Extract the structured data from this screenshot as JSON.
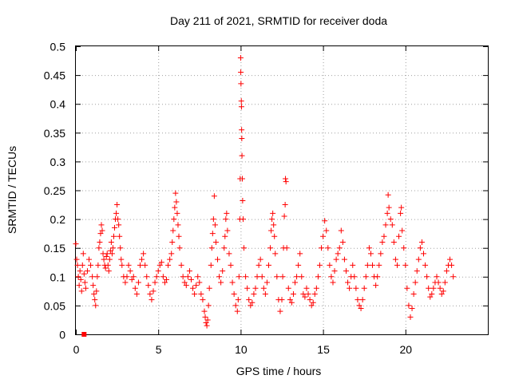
{
  "chart_data": {
    "type": "scatter",
    "title": "Day 211 of 2021, SRMTID for receiver doda",
    "xlabel": "GPS time / hours",
    "ylabel": "SRMTID / TECUs",
    "xlim": [
      0,
      25
    ],
    "ylim": [
      0,
      0.5
    ],
    "x_ticks": [
      0,
      5,
      10,
      15,
      20
    ],
    "x_tick_labels": [
      "0",
      "5",
      "10",
      "15",
      "20"
    ],
    "y_ticks": [
      0,
      0.05,
      0.1,
      0.15,
      0.2,
      0.25,
      0.3,
      0.35,
      0.4,
      0.45,
      0.5
    ],
    "y_tick_labels": [
      "0",
      "0.05",
      "0.1",
      "0.15",
      "0.2",
      "0.25",
      "0.3",
      "0.35",
      "0.4",
      "0.45",
      "0.5"
    ],
    "grid": true,
    "marker_color": "#ff0000",
    "series": [
      {
        "name": "SRMTID",
        "marker": "plus",
        "points": [
          [
            0.0,
            0.157
          ],
          [
            0.05,
            0.13
          ],
          [
            0.1,
            0.12
          ],
          [
            0.15,
            0.1
          ],
          [
            0.2,
            0.085
          ],
          [
            0.25,
            0.11
          ],
          [
            0.3,
            0.095
          ],
          [
            0.35,
            0.075
          ],
          [
            0.4,
            0.12
          ],
          [
            0.45,
            0.14
          ],
          [
            0.5,
            0.105
          ],
          [
            0.55,
            0.09
          ],
          [
            0.6,
            0.08
          ],
          [
            0.7,
            0.11
          ],
          [
            0.8,
            0.13
          ],
          [
            0.9,
            0.12
          ],
          [
            1.0,
            0.1
          ],
          [
            1.05,
            0.085
          ],
          [
            1.1,
            0.07
          ],
          [
            1.15,
            0.06
          ],
          [
            1.2,
            0.05
          ],
          [
            1.25,
            0.075
          ],
          [
            1.3,
            0.1
          ],
          [
            1.35,
            0.12
          ],
          [
            1.4,
            0.15
          ],
          [
            1.45,
            0.16
          ],
          [
            1.5,
            0.175
          ],
          [
            1.55,
            0.19
          ],
          [
            1.6,
            0.18
          ],
          [
            1.65,
            0.14
          ],
          [
            1.7,
            0.13
          ],
          [
            1.75,
            0.12
          ],
          [
            1.8,
            0.115
          ],
          [
            1.85,
            0.135
          ],
          [
            1.9,
            0.14
          ],
          [
            1.95,
            0.12
          ],
          [
            2.0,
            0.11
          ],
          [
            2.05,
            0.13
          ],
          [
            2.1,
            0.145
          ],
          [
            2.15,
            0.16
          ],
          [
            2.2,
            0.14
          ],
          [
            2.25,
            0.15
          ],
          [
            2.3,
            0.17
          ],
          [
            2.35,
            0.185
          ],
          [
            2.4,
            0.2
          ],
          [
            2.45,
            0.21
          ],
          [
            2.5,
            0.225
          ],
          [
            2.55,
            0.2
          ],
          [
            2.6,
            0.19
          ],
          [
            2.65,
            0.17
          ],
          [
            2.7,
            0.15
          ],
          [
            2.75,
            0.13
          ],
          [
            2.8,
            0.12
          ],
          [
            2.9,
            0.1
          ],
          [
            3.0,
            0.09
          ],
          [
            3.1,
            0.1
          ],
          [
            3.2,
            0.12
          ],
          [
            3.3,
            0.11
          ],
          [
            3.4,
            0.095
          ],
          [
            3.5,
            0.1
          ],
          [
            3.6,
            0.08
          ],
          [
            3.7,
            0.07
          ],
          [
            3.8,
            0.09
          ],
          [
            3.9,
            0.12
          ],
          [
            4.0,
            0.13
          ],
          [
            4.1,
            0.14
          ],
          [
            4.2,
            0.12
          ],
          [
            4.3,
            0.1
          ],
          [
            4.4,
            0.085
          ],
          [
            4.5,
            0.07
          ],
          [
            4.6,
            0.06
          ],
          [
            4.7,
            0.075
          ],
          [
            4.8,
            0.09
          ],
          [
            4.9,
            0.1
          ],
          [
            5.0,
            0.11
          ],
          [
            5.1,
            0.12
          ],
          [
            5.2,
            0.125
          ],
          [
            5.3,
            0.1
          ],
          [
            5.4,
            0.09
          ],
          [
            5.5,
            0.095
          ],
          [
            5.6,
            0.12
          ],
          [
            5.7,
            0.13
          ],
          [
            5.8,
            0.14
          ],
          [
            5.85,
            0.16
          ],
          [
            5.9,
            0.18
          ],
          [
            5.95,
            0.2
          ],
          [
            6.0,
            0.22
          ],
          [
            6.05,
            0.245
          ],
          [
            6.1,
            0.23
          ],
          [
            6.15,
            0.21
          ],
          [
            6.2,
            0.19
          ],
          [
            6.25,
            0.17
          ],
          [
            6.3,
            0.15
          ],
          [
            6.4,
            0.12
          ],
          [
            6.5,
            0.1
          ],
          [
            6.6,
            0.09
          ],
          [
            6.7,
            0.085
          ],
          [
            6.8,
            0.1
          ],
          [
            6.9,
            0.11
          ],
          [
            7.0,
            0.095
          ],
          [
            7.1,
            0.08
          ],
          [
            7.2,
            0.07
          ],
          [
            7.3,
            0.085
          ],
          [
            7.4,
            0.1
          ],
          [
            7.5,
            0.09
          ],
          [
            7.6,
            0.07
          ],
          [
            7.7,
            0.06
          ],
          [
            7.8,
            0.04
          ],
          [
            7.85,
            0.03
          ],
          [
            7.9,
            0.02
          ],
          [
            7.95,
            0.015
          ],
          [
            8.0,
            0.025
          ],
          [
            8.05,
            0.05
          ],
          [
            8.1,
            0.08
          ],
          [
            8.2,
            0.12
          ],
          [
            8.25,
            0.15
          ],
          [
            8.3,
            0.175
          ],
          [
            8.35,
            0.2
          ],
          [
            8.4,
            0.24
          ],
          [
            8.45,
            0.19
          ],
          [
            8.5,
            0.16
          ],
          [
            8.6,
            0.13
          ],
          [
            8.7,
            0.1
          ],
          [
            8.8,
            0.09
          ],
          [
            8.9,
            0.11
          ],
          [
            9.0,
            0.15
          ],
          [
            9.05,
            0.17
          ],
          [
            9.1,
            0.2
          ],
          [
            9.15,
            0.21
          ],
          [
            9.2,
            0.18
          ],
          [
            9.3,
            0.14
          ],
          [
            9.4,
            0.12
          ],
          [
            9.5,
            0.09
          ],
          [
            9.6,
            0.07
          ],
          [
            9.7,
            0.05
          ],
          [
            9.8,
            0.04
          ],
          [
            9.85,
            0.06
          ],
          [
            9.9,
            0.1
          ],
          [
            9.95,
            0.2
          ],
          [
            9.97,
            0.27
          ],
          [
            10.0,
            0.48
          ],
          [
            10.01,
            0.455
          ],
          [
            10.02,
            0.435
          ],
          [
            10.04,
            0.405
          ],
          [
            10.05,
            0.395
          ],
          [
            10.06,
            0.355
          ],
          [
            10.07,
            0.34
          ],
          [
            10.08,
            0.31
          ],
          [
            10.1,
            0.27
          ],
          [
            10.12,
            0.232
          ],
          [
            10.15,
            0.2
          ],
          [
            10.2,
            0.15
          ],
          [
            10.3,
            0.1
          ],
          [
            10.4,
            0.08
          ],
          [
            10.5,
            0.06
          ],
          [
            10.6,
            0.05
          ],
          [
            10.7,
            0.055
          ],
          [
            10.8,
            0.07
          ],
          [
            10.9,
            0.08
          ],
          [
            11.0,
            0.1
          ],
          [
            11.1,
            0.12
          ],
          [
            11.2,
            0.13
          ],
          [
            11.3,
            0.1
          ],
          [
            11.4,
            0.08
          ],
          [
            11.5,
            0.07
          ],
          [
            11.6,
            0.09
          ],
          [
            11.7,
            0.12
          ],
          [
            11.8,
            0.15
          ],
          [
            11.85,
            0.18
          ],
          [
            11.9,
            0.2
          ],
          [
            11.95,
            0.21
          ],
          [
            12.0,
            0.19
          ],
          [
            12.05,
            0.17
          ],
          [
            12.1,
            0.14
          ],
          [
            12.2,
            0.1
          ],
          [
            12.3,
            0.06
          ],
          [
            12.4,
            0.04
          ],
          [
            12.5,
            0.06
          ],
          [
            12.55,
            0.1
          ],
          [
            12.6,
            0.15
          ],
          [
            12.65,
            0.205
          ],
          [
            12.7,
            0.225
          ],
          [
            12.72,
            0.27
          ],
          [
            12.75,
            0.265
          ],
          [
            12.8,
            0.15
          ],
          [
            12.9,
            0.08
          ],
          [
            13.0,
            0.06
          ],
          [
            13.1,
            0.055
          ],
          [
            13.2,
            0.07
          ],
          [
            13.3,
            0.09
          ],
          [
            13.4,
            0.1
          ],
          [
            13.5,
            0.12
          ],
          [
            13.6,
            0.14
          ],
          [
            13.7,
            0.1
          ],
          [
            13.8,
            0.07
          ],
          [
            13.9,
            0.065
          ],
          [
            14.0,
            0.08
          ],
          [
            14.1,
            0.07
          ],
          [
            14.2,
            0.06
          ],
          [
            14.3,
            0.05
          ],
          [
            14.4,
            0.055
          ],
          [
            14.5,
            0.07
          ],
          [
            14.6,
            0.08
          ],
          [
            14.7,
            0.1
          ],
          [
            14.8,
            0.12
          ],
          [
            14.9,
            0.15
          ],
          [
            15.0,
            0.17
          ],
          [
            15.1,
            0.197
          ],
          [
            15.2,
            0.18
          ],
          [
            15.3,
            0.15
          ],
          [
            15.4,
            0.12
          ],
          [
            15.5,
            0.1
          ],
          [
            15.6,
            0.09
          ],
          [
            15.7,
            0.11
          ],
          [
            15.8,
            0.13
          ],
          [
            15.9,
            0.14
          ],
          [
            16.0,
            0.15
          ],
          [
            16.1,
            0.18
          ],
          [
            16.2,
            0.16
          ],
          [
            16.3,
            0.13
          ],
          [
            16.4,
            0.11
          ],
          [
            16.5,
            0.09
          ],
          [
            16.6,
            0.08
          ],
          [
            16.7,
            0.1
          ],
          [
            16.8,
            0.12
          ],
          [
            16.9,
            0.1
          ],
          [
            17.0,
            0.08
          ],
          [
            17.1,
            0.06
          ],
          [
            17.2,
            0.05
          ],
          [
            17.3,
            0.045
          ],
          [
            17.4,
            0.06
          ],
          [
            17.5,
            0.08
          ],
          [
            17.6,
            0.1
          ],
          [
            17.7,
            0.12
          ],
          [
            17.8,
            0.15
          ],
          [
            17.9,
            0.14
          ],
          [
            18.0,
            0.12
          ],
          [
            18.1,
            0.1
          ],
          [
            18.2,
            0.085
          ],
          [
            18.3,
            0.1
          ],
          [
            18.4,
            0.12
          ],
          [
            18.5,
            0.14
          ],
          [
            18.6,
            0.16
          ],
          [
            18.7,
            0.17
          ],
          [
            18.8,
            0.19
          ],
          [
            18.9,
            0.21
          ],
          [
            18.95,
            0.242
          ],
          [
            19.0,
            0.22
          ],
          [
            19.1,
            0.2
          ],
          [
            19.2,
            0.19
          ],
          [
            19.3,
            0.16
          ],
          [
            19.4,
            0.13
          ],
          [
            19.5,
            0.12
          ],
          [
            19.6,
            0.17
          ],
          [
            19.7,
            0.21
          ],
          [
            19.75,
            0.22
          ],
          [
            19.8,
            0.18
          ],
          [
            19.9,
            0.15
          ],
          [
            20.0,
            0.12
          ],
          [
            20.1,
            0.08
          ],
          [
            20.2,
            0.05
          ],
          [
            20.3,
            0.03
          ],
          [
            20.4,
            0.045
          ],
          [
            20.5,
            0.07
          ],
          [
            20.6,
            0.09
          ],
          [
            20.7,
            0.11
          ],
          [
            20.8,
            0.13
          ],
          [
            20.9,
            0.15
          ],
          [
            21.0,
            0.16
          ],
          [
            21.1,
            0.14
          ],
          [
            21.2,
            0.12
          ],
          [
            21.3,
            0.1
          ],
          [
            21.4,
            0.08
          ],
          [
            21.5,
            0.065
          ],
          [
            21.6,
            0.07
          ],
          [
            21.7,
            0.08
          ],
          [
            21.8,
            0.09
          ],
          [
            21.9,
            0.1
          ],
          [
            22.0,
            0.09
          ],
          [
            22.1,
            0.08
          ],
          [
            22.2,
            0.07
          ],
          [
            22.3,
            0.075
          ],
          [
            22.4,
            0.09
          ],
          [
            22.5,
            0.11
          ],
          [
            22.6,
            0.12
          ],
          [
            22.7,
            0.13
          ],
          [
            22.8,
            0.12
          ],
          [
            22.9,
            0.1
          ]
        ]
      },
      {
        "name": "marker",
        "marker": "square",
        "points": [
          [
            0.5,
            0.0
          ]
        ]
      }
    ]
  }
}
